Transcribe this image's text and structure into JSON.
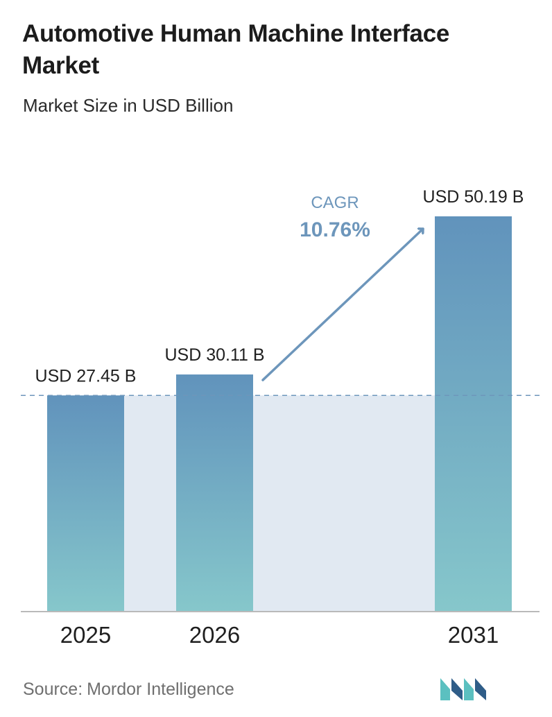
{
  "title": "Automotive Human Machine Interface Market",
  "subtitle": "Market Size in USD Billion",
  "source": {
    "label": "Source:",
    "value": "Mordor Intelligence"
  },
  "cagr": {
    "label": "CAGR",
    "value": "10.76%"
  },
  "colors": {
    "bar_top": "#6193bc",
    "bar_bottom": "#86c7cb",
    "band": "#e1e9f2",
    "arrow": "#6d96bb",
    "baseline": "#b9b9b9",
    "dashed_line": "#6d96bb",
    "cagr_text": "#6d96bb",
    "logo_dark": "#2f5d88",
    "logo_light": "#5bc0c0"
  },
  "chart_data": {
    "type": "bar",
    "categories": [
      "2025",
      "2026",
      "2031"
    ],
    "values": [
      27.45,
      30.11,
      50.19
    ],
    "data_labels": [
      "USD 27.45 B",
      "USD 30.11 B",
      "USD 50.19 B"
    ],
    "title": "Automotive Human Machine Interface Market",
    "subtitle": "Market Size in USD Billion",
    "xlabel": "",
    "ylabel": "",
    "ylim": [
      0,
      50.19
    ],
    "grid": false,
    "legend": "none",
    "reference_line": 27.45
  }
}
